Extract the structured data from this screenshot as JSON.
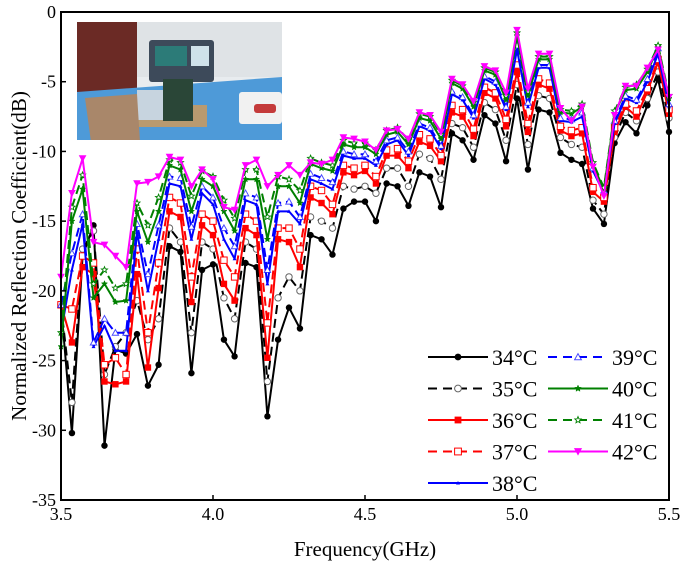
{
  "chart_data": {
    "type": "line",
    "title": "",
    "xlabel": "Frequency(GHz)",
    "ylabel": "Normalized Reflection Coefficient(dB)",
    "xlim": [
      3.5,
      5.5
    ],
    "ylim": [
      -35,
      0
    ],
    "xticks": [
      "3.5",
      "4.0",
      "4.5",
      "5.0",
      "5.5"
    ],
    "yticks": [
      "0",
      "-5",
      "-10",
      "-15",
      "-20",
      "-25",
      "-30",
      "-35"
    ],
    "grid": false,
    "legend_position": "lower right, two columns",
    "inset": "photo of measurement setup (antenna on cardboard, vector network analyzer, heater)",
    "x": [
      3.5,
      3.536,
      3.571,
      3.607,
      3.643,
      3.679,
      3.714,
      3.75,
      3.786,
      3.821,
      3.857,
      3.893,
      3.929,
      3.964,
      4.0,
      4.036,
      4.071,
      4.107,
      4.143,
      4.179,
      4.214,
      4.25,
      4.286,
      4.321,
      4.357,
      4.393,
      4.429,
      4.464,
      4.5,
      4.536,
      4.571,
      4.607,
      4.643,
      4.679,
      4.714,
      4.75,
      4.786,
      4.821,
      4.857,
      4.893,
      4.929,
      4.964,
      5.0,
      5.036,
      5.071,
      5.107,
      5.143,
      5.179,
      5.214,
      5.25,
      5.286,
      5.321,
      5.357,
      5.393,
      5.429,
      5.464,
      5.5
    ],
    "series": [
      {
        "name": "34°C",
        "color": "#000000",
        "dash": "solid",
        "marker": "filled-circle",
        "values": [
          -21,
          -30.2,
          -17.5,
          -15.3,
          -31.1,
          -24.2,
          -24.5,
          -23.1,
          -26.8,
          -25.3,
          -16.8,
          -17.2,
          -25.9,
          -18.5,
          -18.1,
          -23.5,
          -24.7,
          -18.0,
          -18.3,
          -29.0,
          -23.5,
          -21.2,
          -22.7,
          -16.0,
          -16.3,
          -17.4,
          -14.1,
          -13.6,
          -13.6,
          -15.0,
          -12.3,
          -12.5,
          -13.9,
          -11.5,
          -11.8,
          -14.0,
          -8.7,
          -9.2,
          -10.6,
          -7.4,
          -8.0,
          -10.7,
          -6.2,
          -11.3,
          -7.0,
          -7.2,
          -10.1,
          -10.6,
          -10.9,
          -14.1,
          -15.2,
          -9.4,
          -7.9,
          -8.7,
          -6.7,
          -4.8,
          -8.6
        ]
      },
      {
        "name": "35°C",
        "color": "#000000",
        "dash": "dashed",
        "marker": "open-circle",
        "values": [
          -21,
          -28.0,
          -17.0,
          -15.7,
          -26.0,
          -24.0,
          -23.0,
          -20.7,
          -23.5,
          -22.0,
          -15.5,
          -16.5,
          -23.0,
          -16.5,
          -17.0,
          -20.5,
          -22.0,
          -16.5,
          -17.0,
          -26.5,
          -20.5,
          -19.0,
          -20.0,
          -14.7,
          -15.0,
          -15.5,
          -12.5,
          -12.7,
          -12.5,
          -13.0,
          -11.2,
          -11.2,
          -12.5,
          -10.2,
          -10.5,
          -12.0,
          -8.0,
          -8.3,
          -9.7,
          -6.5,
          -7.0,
          -9.2,
          -5.2,
          -9.5,
          -6.0,
          -6.2,
          -9.0,
          -9.5,
          -9.7,
          -13.5,
          -14.5,
          -9.0,
          -7.2,
          -7.8,
          -6.2,
          -4.3,
          -7.6
        ]
      },
      {
        "name": "36°C",
        "color": "#ff0000",
        "dash": "solid",
        "marker": "filled-square",
        "values": [
          -21,
          -23.7,
          -18.3,
          -18.8,
          -26.5,
          -26.7,
          -26.5,
          -18.8,
          -25.5,
          -19.8,
          -14.3,
          -14.7,
          -20.8,
          -15.3,
          -16.0,
          -19.5,
          -20.7,
          -15.5,
          -16.0,
          -24.8,
          -16.3,
          -16.5,
          -18.3,
          -13.3,
          -13.7,
          -14.5,
          -11.5,
          -11.7,
          -11.4,
          -12.3,
          -10.3,
          -10.3,
          -11.2,
          -9.3,
          -9.6,
          -10.7,
          -7.2,
          -7.5,
          -8.9,
          -5.8,
          -6.2,
          -8.2,
          -4.3,
          -8.6,
          -5.2,
          -5.5,
          -8.5,
          -8.9,
          -8.7,
          -12.9,
          -13.6,
          -8.6,
          -6.8,
          -7.5,
          -5.7,
          -3.6,
          -7.3
        ]
      },
      {
        "name": "37°C",
        "color": "#ff0000",
        "dash": "dashed",
        "marker": "open-square",
        "values": [
          -21,
          -21.3,
          -17.5,
          -18.0,
          -25.3,
          -24.8,
          -26.0,
          -17.0,
          -23.0,
          -18.0,
          -13.3,
          -13.7,
          -19.0,
          -14.5,
          -15.0,
          -17.8,
          -19.0,
          -14.5,
          -15.0,
          -22.3,
          -15.5,
          -15.5,
          -17.0,
          -12.5,
          -12.8,
          -13.8,
          -11.0,
          -11.2,
          -11.0,
          -11.8,
          -9.9,
          -9.8,
          -10.7,
          -8.8,
          -9.1,
          -10.3,
          -6.7,
          -7.0,
          -8.4,
          -5.4,
          -5.8,
          -7.7,
          -3.8,
          -8.0,
          -4.8,
          -5.1,
          -8.2,
          -8.5,
          -8.3,
          -12.6,
          -13.3,
          -8.3,
          -6.6,
          -7.1,
          -5.5,
          -3.4,
          -7.0
        ]
      },
      {
        "name": "38°C",
        "color": "#0000ff",
        "dash": "solid",
        "marker": "small-triangle",
        "values": [
          -23,
          -18.5,
          -15.2,
          -24.0,
          -22.5,
          -24.3,
          -24.3,
          -15.8,
          -20.0,
          -16.3,
          -12.3,
          -12.5,
          -16.3,
          -13.0,
          -13.8,
          -16.3,
          -17.7,
          -13.5,
          -13.8,
          -19.5,
          -14.3,
          -14.3,
          -15.2,
          -12.0,
          -12.3,
          -12.7,
          -10.3,
          -10.5,
          -10.5,
          -11.0,
          -9.5,
          -9.2,
          -10.3,
          -8.2,
          -8.5,
          -9.8,
          -5.9,
          -6.3,
          -7.6,
          -4.8,
          -5.2,
          -7.0,
          -2.7,
          -6.8,
          -4.0,
          -4.0,
          -7.8,
          -7.9,
          -7.5,
          -11.4,
          -13.0,
          -8.0,
          -6.2,
          -6.5,
          -5.0,
          -3.0,
          -6.8
        ]
      },
      {
        "name": "39°C",
        "color": "#0000ff",
        "dash": "dashed",
        "marker": "open-triangle",
        "values": [
          -21,
          -17.3,
          -14.5,
          -23.7,
          -22.0,
          -23.0,
          -23.0,
          -15.2,
          -18.8,
          -15.3,
          -11.8,
          -11.9,
          -15.4,
          -12.5,
          -13.3,
          -15.5,
          -16.8,
          -13.0,
          -13.3,
          -18.5,
          -13.7,
          -13.6,
          -14.7,
          -11.6,
          -11.9,
          -12.2,
          -10.0,
          -10.2,
          -10.2,
          -10.7,
          -9.2,
          -9.0,
          -10.0,
          -8.0,
          -8.3,
          -9.6,
          -5.7,
          -6.1,
          -7.4,
          -4.6,
          -5.0,
          -6.8,
          -2.4,
          -6.5,
          -3.8,
          -3.8,
          -7.6,
          -7.7,
          -7.2,
          -11.2,
          -12.8,
          -7.8,
          -6.0,
          -6.3,
          -4.8,
          -2.6,
          -6.6
        ]
      },
      {
        "name": "40°C",
        "color": "#008000",
        "dash": "solid",
        "marker": "filled-star",
        "values": [
          -24,
          -15.0,
          -12.7,
          -20.5,
          -19.5,
          -20.8,
          -20.7,
          -14.3,
          -16.5,
          -14.3,
          -11.0,
          -11.3,
          -14.3,
          -12.0,
          -12.5,
          -14.3,
          -15.7,
          -12.0,
          -12.0,
          -16.3,
          -12.5,
          -12.5,
          -13.7,
          -10.9,
          -11.2,
          -11.4,
          -9.5,
          -9.7,
          -9.7,
          -10.2,
          -8.8,
          -8.6,
          -9.5,
          -7.6,
          -7.8,
          -9.1,
          -5.1,
          -5.5,
          -6.8,
          -4.2,
          -4.5,
          -6.3,
          -1.7,
          -6.0,
          -3.4,
          -3.4,
          -7.2,
          -7.3,
          -6.8,
          -11.0,
          -12.7,
          -7.3,
          -5.6,
          -5.5,
          -4.3,
          -2.5,
          -6.2
        ]
      },
      {
        "name": "41°C",
        "color": "#008000",
        "dash": "dashed",
        "marker": "open-star",
        "values": [
          -23,
          -14.0,
          -11.7,
          -19.5,
          -18.5,
          -19.8,
          -19.5,
          -13.7,
          -15.3,
          -13.3,
          -10.6,
          -10.8,
          -13.2,
          -11.4,
          -11.8,
          -13.5,
          -14.8,
          -11.3,
          -11.3,
          -14.7,
          -11.8,
          -12.0,
          -12.8,
          -10.5,
          -10.8,
          -11.0,
          -9.2,
          -9.4,
          -9.4,
          -9.9,
          -8.5,
          -8.3,
          -9.2,
          -7.3,
          -7.5,
          -8.8,
          -4.9,
          -5.3,
          -6.5,
          -4.0,
          -4.3,
          -6.0,
          -1.5,
          -5.7,
          -3.2,
          -3.2,
          -7.0,
          -7.1,
          -6.6,
          -10.8,
          -12.6,
          -7.1,
          -5.4,
          -5.2,
          -4.1,
          -2.4,
          -6.0
        ]
      },
      {
        "name": "42°C",
        "color": "#ff00ff",
        "dash": "solid",
        "marker": "filled-down-triangle",
        "values": [
          -19,
          -13.0,
          -10.5,
          -16.5,
          -16.7,
          -17.5,
          -18.3,
          -12.3,
          -12.2,
          -11.8,
          -10.4,
          -10.6,
          -12.5,
          -11.3,
          -12.0,
          -14.0,
          -14.2,
          -11.0,
          -10.6,
          -12.5,
          -11.7,
          -11.0,
          -11.7,
          -10.8,
          -10.9,
          -10.6,
          -9.0,
          -9.1,
          -9.3,
          -9.9,
          -8.5,
          -8.4,
          -9.1,
          -7.2,
          -7.4,
          -8.6,
          -4.8,
          -5.2,
          -6.4,
          -3.9,
          -4.2,
          -5.8,
          -1.3,
          -5.5,
          -3.0,
          -3.0,
          -6.9,
          -7.8,
          -6.8,
          -11.1,
          -13.2,
          -7.4,
          -5.3,
          -5.3,
          -4.0,
          -2.7,
          -6.1
        ]
      }
    ]
  },
  "axes": {
    "xlabel": "Frequency(GHz)",
    "ylabel": "Normalized Reflection Coefficient(dB)",
    "xticks": [
      "3.5",
      "4.0",
      "4.5",
      "5.0",
      "5.5"
    ],
    "yticks": [
      "0",
      "-5",
      "-10",
      "-15",
      "-20",
      "-25",
      "-30",
      "-35"
    ]
  },
  "legend": [
    {
      "label": "34°C",
      "color": "#000000",
      "dash": "solid",
      "marker": "filled-circle"
    },
    {
      "label": "35°C",
      "color": "#000000",
      "dash": "dashed",
      "marker": "open-circle"
    },
    {
      "label": "36°C",
      "color": "#ff0000",
      "dash": "solid",
      "marker": "filled-square"
    },
    {
      "label": "37°C",
      "color": "#ff0000",
      "dash": "dashed",
      "marker": "open-square"
    },
    {
      "label": "38°C",
      "color": "#0000ff",
      "dash": "solid",
      "marker": "small-triangle"
    },
    {
      "label": "39°C",
      "color": "#0000ff",
      "dash": "dashed",
      "marker": "open-triangle"
    },
    {
      "label": "40°C",
      "color": "#008000",
      "dash": "solid",
      "marker": "filled-star"
    },
    {
      "label": "41°C",
      "color": "#008000",
      "dash": "dashed",
      "marker": "open-star"
    },
    {
      "label": "42°C",
      "color": "#ff00ff",
      "dash": "solid",
      "marker": "filled-down-triangle"
    }
  ]
}
